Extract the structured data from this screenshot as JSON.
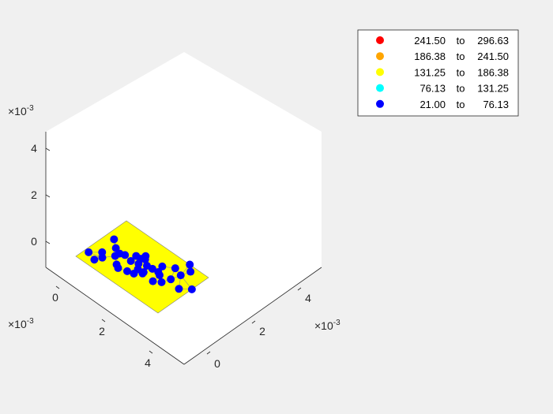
{
  "chart_data": {
    "type": "scatter3d",
    "view": "isometric",
    "axes": {
      "x": {
        "ticks": [
          "0",
          "2",
          "4"
        ],
        "exponent": "-3"
      },
      "y": {
        "ticks": [
          "0",
          "2",
          "4"
        ],
        "exponent": "-3"
      },
      "z": {
        "ticks": [
          "0",
          "2",
          "4"
        ],
        "exponent": "-3"
      }
    },
    "surface_color": "#ffff00",
    "point_color": "#0000ff",
    "legend": {
      "placement": "top-right",
      "entries": [
        {
          "from": "241.50",
          "to_word": "to",
          "to": "296.63",
          "color": "#ff0000"
        },
        {
          "from": "186.38",
          "to_word": "to",
          "to": "241.50",
          "color": "#ffa500"
        },
        {
          "from": "131.25",
          "to_word": "to",
          "to": "186.38",
          "color": "#ffff00"
        },
        {
          "from": "76.13",
          "to_word": "to",
          "to": "131.25",
          "color": "#00ffff"
        },
        {
          "from": "21.00",
          "to_word": "to",
          "to": "76.13",
          "color": "#0000ff"
        }
      ]
    },
    "points": [
      [
        0.36,
        2.76,
        0
      ],
      [
        0.53,
        1.41,
        0
      ],
      [
        0.18,
        0.82,
        0
      ],
      [
        0.73,
        1.08,
        0
      ],
      [
        0.6,
        0.6,
        0
      ],
      [
        0.73,
        2.28,
        0
      ],
      [
        1.03,
        2.1,
        0
      ],
      [
        1.22,
        2.24,
        0
      ],
      [
        1.54,
        2.67,
        0
      ],
      [
        1.79,
        3.08,
        0
      ],
      [
        1.76,
        2.69,
        0
      ],
      [
        1.35,
        1.27,
        0
      ],
      [
        1.52,
        1.11,
        0
      ],
      [
        1.59,
        2.12,
        0
      ],
      [
        1.89,
        2.28,
        0
      ],
      [
        2.18,
        2.52,
        0
      ],
      [
        2.07,
        1.91,
        0
      ],
      [
        2.33,
        1.97,
        0
      ],
      [
        1.87,
        1.31,
        0
      ],
      [
        2.13,
        1.45,
        0
      ],
      [
        2.35,
        1.84,
        0
      ],
      [
        2.43,
        2.57,
        0
      ],
      [
        2.7,
        2.62,
        0
      ],
      [
        2.85,
        2.48,
        0
      ],
      [
        3.0,
        3.61,
        0
      ],
      [
        3.29,
        2.71,
        0
      ],
      [
        3.16,
        2.12,
        0
      ],
      [
        3.52,
        4.06,
        0
      ],
      [
        3.85,
        2.46,
        0
      ],
      [
        3.24,
        4.48,
        0
      ],
      [
        4.2,
        3.0,
        0
      ],
      [
        1.0,
        1.75,
        0
      ],
      [
        1.9,
        2.85,
        0
      ],
      [
        2.6,
        3.15,
        0
      ],
      [
        3.4,
        3.4,
        0
      ],
      [
        2.9,
        1.8,
        0
      ]
    ]
  }
}
